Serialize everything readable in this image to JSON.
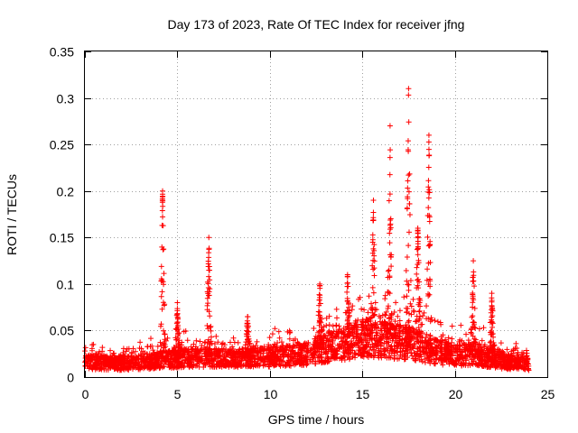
{
  "chart_data": {
    "type": "scatter",
    "title": "Day 173 of 2023, Rate Of TEC Index for receiver jfng",
    "xlabel": "GPS time / hours",
    "ylabel": "ROTI / TECUs",
    "xlim": [
      0,
      25
    ],
    "ylim": [
      0,
      0.35
    ],
    "xticks": [
      0,
      5,
      10,
      15,
      20,
      25
    ],
    "yticks": [
      0,
      0.05,
      0.1,
      0.15,
      0.2,
      0.25,
      0.3,
      0.35
    ],
    "xtick_labels": [
      "0",
      "5",
      "10",
      "15",
      "20",
      "25"
    ],
    "ytick_labels": [
      "0",
      "0.05",
      "0.1",
      "0.15",
      "0.2",
      "0.25",
      "0.3",
      "0.35"
    ],
    "grid": true,
    "marker": "+",
    "color": "#ff0000",
    "series": [
      {
        "name": "ROTI",
        "baseline_profile": {
          "x": [
            0,
            2,
            4,
            6,
            8,
            10,
            12,
            13,
            14,
            15,
            16,
            17,
            18,
            19,
            20,
            21,
            22,
            23,
            24
          ],
          "typical_y": [
            0.018,
            0.016,
            0.02,
            0.024,
            0.022,
            0.024,
            0.028,
            0.034,
            0.04,
            0.048,
            0.045,
            0.042,
            0.038,
            0.03,
            0.026,
            0.028,
            0.022,
            0.018,
            0.016
          ]
        },
        "peaks": [
          {
            "x": 4.2,
            "y": 0.2
          },
          {
            "x": 6.7,
            "y": 0.15
          },
          {
            "x": 5.0,
            "y": 0.08
          },
          {
            "x": 12.7,
            "y": 0.1
          },
          {
            "x": 14.2,
            "y": 0.11
          },
          {
            "x": 15.6,
            "y": 0.19
          },
          {
            "x": 16.5,
            "y": 0.27
          },
          {
            "x": 17.5,
            "y": 0.31
          },
          {
            "x": 18.6,
            "y": 0.26
          },
          {
            "x": 18.0,
            "y": 0.16
          },
          {
            "x": 21.0,
            "y": 0.125
          },
          {
            "x": 22.0,
            "y": 0.09
          },
          {
            "x": 8.8,
            "y": 0.065
          }
        ]
      }
    ]
  }
}
